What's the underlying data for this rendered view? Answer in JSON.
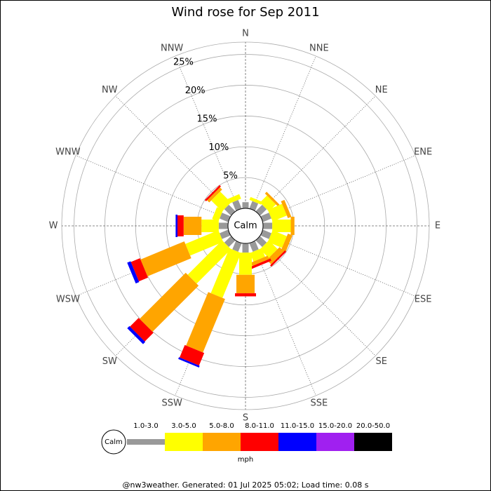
{
  "chart_data": {
    "type": "windrose",
    "title": "Wind rose for Sep 2011",
    "categories": [
      "N",
      "NNE",
      "NE",
      "ENE",
      "E",
      "ESE",
      "SE",
      "SSE",
      "S",
      "SSW",
      "SW",
      "WSW",
      "W",
      "WNW",
      "NW",
      "NNW"
    ],
    "calm_label": "Calm",
    "unit_label": "mph",
    "footer": "@nw3weather. Generated: 01 Jul 2025 05:02; Load time: 0.08 s",
    "rlim": [
      0,
      27
    ],
    "rticks": [
      {
        "value": 5,
        "label": "5%"
      },
      {
        "value": 10,
        "label": "10%"
      },
      {
        "value": 15,
        "label": "15%"
      },
      {
        "value": 20,
        "label": "20%"
      },
      {
        "value": 25,
        "label": "25%"
      }
    ],
    "series": [
      {
        "name": "1.0-3.0",
        "color": "#999999",
        "values": [
          1.0,
          1.3,
          1.5,
          1.5,
          1.5,
          1.5,
          1.5,
          1.5,
          1.5,
          1.5,
          1.5,
          1.5,
          1.5,
          1.5,
          1.5,
          1.5
        ]
      },
      {
        "name": "3.0-5.0",
        "color": "#ffff00",
        "values": [
          0,
          0.5,
          1.6,
          2.5,
          3.0,
          2.5,
          2.0,
          1.5,
          3.6,
          7.9,
          7.9,
          5.8,
          2.8,
          1.1,
          2.5,
          0.8
        ]
      },
      {
        "name": "5.0-8.0",
        "color": "#ffa500",
        "values": [
          0,
          0,
          0.4,
          0.6,
          0.6,
          0.8,
          1.0,
          0.6,
          3.0,
          9.4,
          10.6,
          7.7,
          2.9,
          0,
          0.5,
          0
        ]
      },
      {
        "name": "8.0-11.0",
        "color": "#ff0000",
        "values": [
          0,
          0,
          0,
          0,
          0,
          0,
          0.3,
          0.4,
          0.5,
          2.2,
          2.0,
          1.6,
          1.0,
          0,
          0.3,
          0
        ]
      },
      {
        "name": "11.0-15.0",
        "color": "#0000ff",
        "values": [
          0,
          0,
          0,
          0,
          0,
          0,
          0,
          0,
          0,
          0.3,
          0.5,
          0.6,
          0.3,
          0,
          0,
          0
        ]
      },
      {
        "name": "15.0-20.0",
        "color": "#a020f0",
        "values": [
          0,
          0,
          0,
          0,
          0,
          0,
          0,
          0,
          0,
          0,
          0,
          0,
          0,
          0,
          0,
          0
        ]
      },
      {
        "name": "20.0-50.0",
        "color": "#000000",
        "values": [
          0,
          0,
          0,
          0,
          0,
          0,
          0,
          0,
          0,
          0,
          0,
          0,
          0,
          0,
          0,
          0
        ]
      }
    ]
  }
}
